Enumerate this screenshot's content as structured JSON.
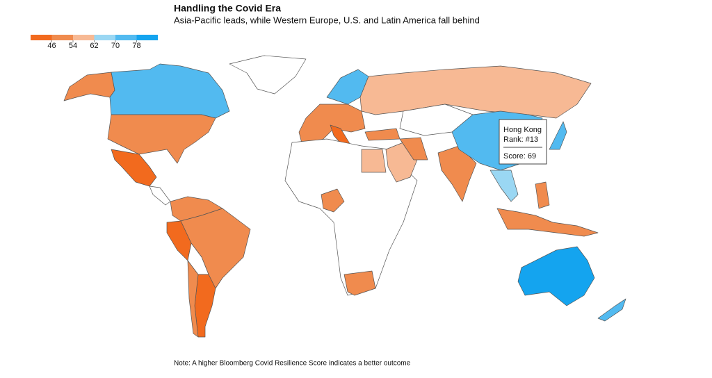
{
  "title": "Handling the Covid Era",
  "subtitle": "Asia-Pacific leads, while Western Europe, U.S. and Latin America fall behind",
  "legend": {
    "colors": [
      "#f26a1e",
      "#f08b4e",
      "#f7b994",
      "#9ad7f3",
      "#52baf0",
      "#14a4ef"
    ],
    "ticks": [
      46,
      54,
      62,
      70,
      78
    ]
  },
  "tooltip": {
    "name": "Hong Kong",
    "rank": "Rank: #13",
    "score": "Score: 69"
  },
  "note": "Note: A higher Bloomberg Covid Resilience Score indicates a better outcome"
}
